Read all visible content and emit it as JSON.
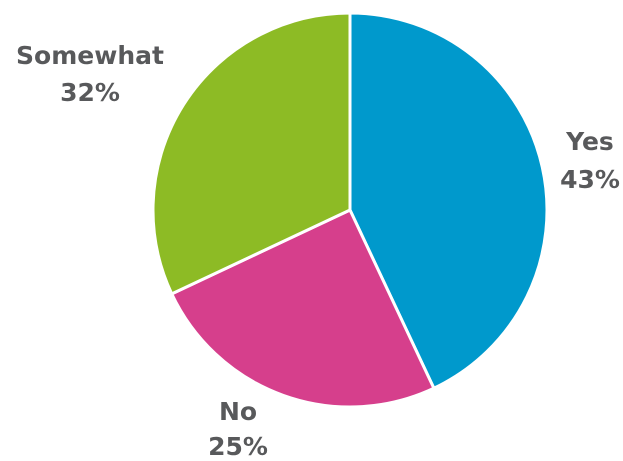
{
  "chart_data": {
    "type": "pie",
    "title": "",
    "slices": [
      {
        "label": "Yes",
        "value": 43,
        "value_label": "43%",
        "color": "#0099cc"
      },
      {
        "label": "No",
        "value": 25,
        "value_label": "25%",
        "color": "#d63f8c"
      },
      {
        "label": "Somewhat",
        "value": 32,
        "value_label": "32%",
        "color": "#8dbb25"
      }
    ],
    "start_angle": "12 o'clock",
    "direction": "clockwise",
    "legend": "none",
    "label_color": "#58595b"
  }
}
